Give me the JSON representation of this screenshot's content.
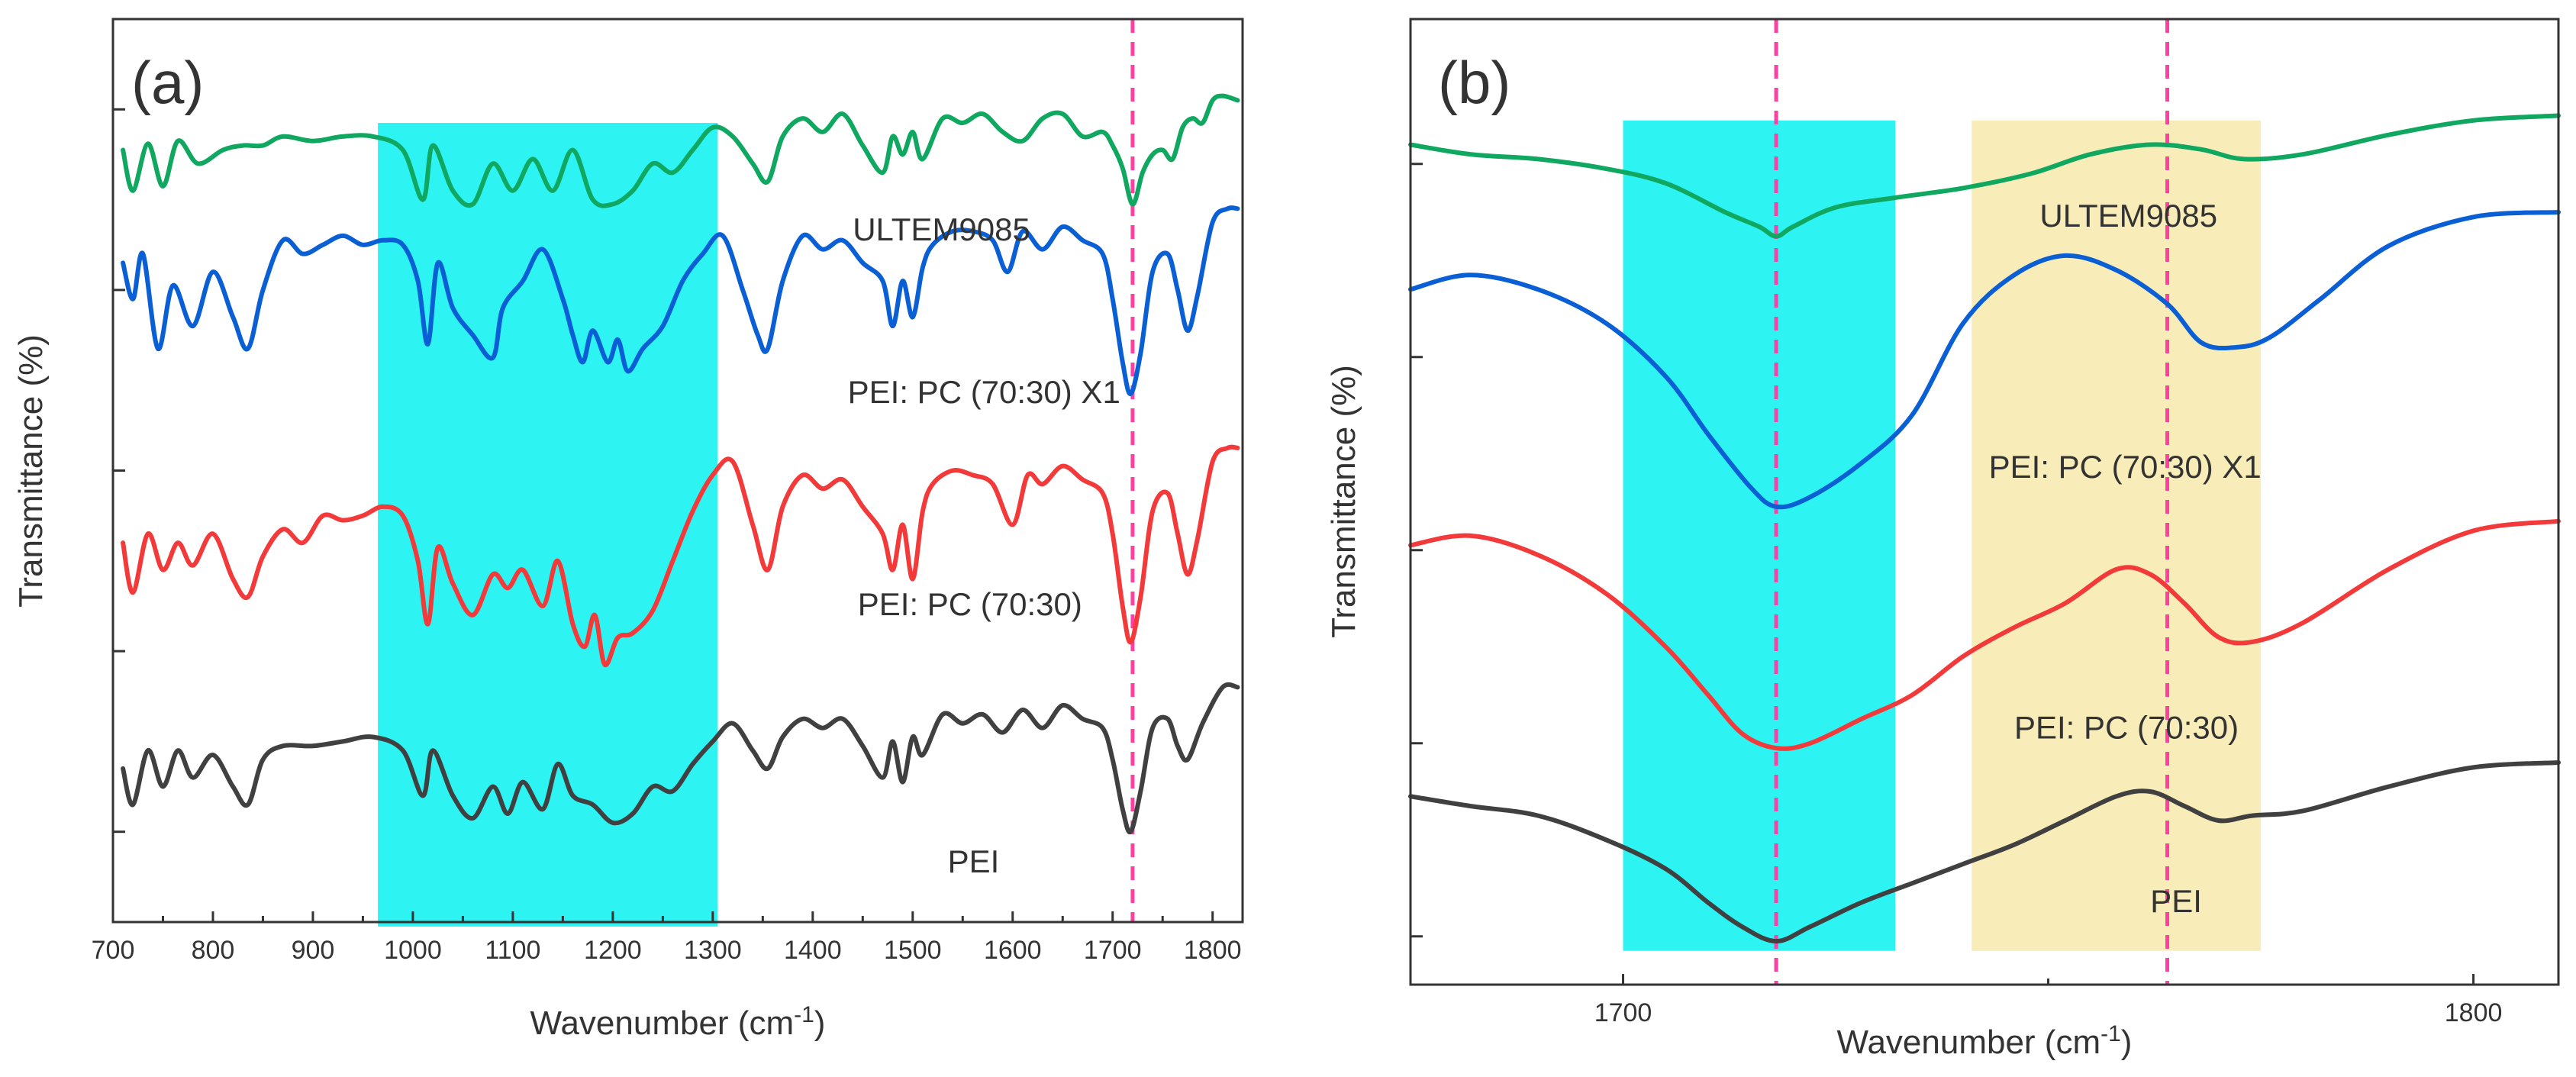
{
  "colors": {
    "ULTEM9085": "#10a860",
    "PEI_PC_X1": "#0a5fd4",
    "PEI_PC": "#f23a3a",
    "PEI": "#404040",
    "cyan_band": "#2ef3f3",
    "yellow_band": "#f8edb8",
    "ref_line": "#ff3fa4"
  },
  "chart_data": [
    {
      "type": "line",
      "panel_label": "(a)",
      "xlabel": "Wavenumber (cm",
      "xlabel_sup": "-1",
      "xlabel_close": ")",
      "ylabel": "Transmittance (%)",
      "xlim": [
        700,
        1830
      ],
      "ylim": [
        0,
        10
      ],
      "xticks": [
        700,
        800,
        900,
        1000,
        1100,
        1200,
        1300,
        1400,
        1500,
        1600,
        1700,
        1800
      ],
      "xtick_labels": [
        "700",
        "800",
        "900",
        "1000",
        "1100",
        "1200",
        "1300",
        "1400",
        "1500",
        "1600",
        "1700",
        "1800"
      ],
      "yticks": [
        1,
        3,
        5,
        7,
        9
      ],
      "ytick_labels": [],
      "highlight_bands": [
        {
          "x": [
            965,
            1305
          ],
          "color_key": "cyan_band"
        }
      ],
      "ref_lines": [
        1720
      ],
      "series": [
        {
          "name": "ULTEM9085",
          "label": "ULTEM9085",
          "label_at": [
            1440,
            7.55
          ],
          "color_key": "ULTEM9085",
          "x": [
            710,
            720,
            735,
            750,
            765,
            785,
            810,
            830,
            850,
            870,
            900,
            930,
            960,
            990,
            1010,
            1020,
            1040,
            1060,
            1080,
            1100,
            1120,
            1140,
            1160,
            1180,
            1200,
            1220,
            1240,
            1260,
            1280,
            1300,
            1320,
            1340,
            1355,
            1370,
            1390,
            1410,
            1430,
            1450,
            1470,
            1480,
            1490,
            1500,
            1510,
            1530,
            1550,
            1570,
            1590,
            1610,
            1630,
            1650,
            1670,
            1690,
            1700,
            1710,
            1720,
            1730,
            1740,
            1750,
            1760,
            1770,
            1780,
            1790,
            1800,
            1810,
            1825
          ],
          "y": [
            8.55,
            8.1,
            8.62,
            8.15,
            8.65,
            8.4,
            8.55,
            8.6,
            8.6,
            8.7,
            8.65,
            8.7,
            8.7,
            8.55,
            8.0,
            8.6,
            8.1,
            7.95,
            8.4,
            8.1,
            8.45,
            8.1,
            8.55,
            8.0,
            7.95,
            8.1,
            8.4,
            8.3,
            8.55,
            8.8,
            8.7,
            8.4,
            8.2,
            8.7,
            8.9,
            8.75,
            8.95,
            8.6,
            8.3,
            8.7,
            8.5,
            8.75,
            8.45,
            8.9,
            8.85,
            8.95,
            8.75,
            8.65,
            8.9,
            8.95,
            8.7,
            8.75,
            8.6,
            8.35,
            7.95,
            8.3,
            8.5,
            8.55,
            8.45,
            8.8,
            8.9,
            8.85,
            9.1,
            9.15,
            9.1
          ]
        },
        {
          "name": "PEI: PC (70:30) X1",
          "label": "PEI: PC (70:30) X1",
          "label_at": [
            1435,
            5.75
          ],
          "color_key": "PEI_PC_X1",
          "x": [
            710,
            720,
            730,
            745,
            760,
            780,
            800,
            820,
            835,
            850,
            870,
            890,
            910,
            930,
            950,
            970,
            990,
            1005,
            1015,
            1025,
            1040,
            1060,
            1080,
            1090,
            1110,
            1130,
            1150,
            1160,
            1170,
            1180,
            1195,
            1205,
            1215,
            1230,
            1250,
            1270,
            1290,
            1310,
            1330,
            1345,
            1355,
            1370,
            1390,
            1410,
            1430,
            1450,
            1470,
            1480,
            1490,
            1500,
            1510,
            1520,
            1540,
            1560,
            1580,
            1595,
            1610,
            1630,
            1650,
            1670,
            1690,
            1700,
            1710,
            1718,
            1728,
            1740,
            1755,
            1765,
            1775,
            1785,
            1800,
            1815,
            1825
          ],
          "y": [
            7.3,
            6.9,
            7.4,
            6.35,
            7.05,
            6.6,
            7.2,
            6.7,
            6.35,
            7.0,
            7.55,
            7.4,
            7.5,
            7.6,
            7.5,
            7.55,
            7.5,
            7.1,
            6.4,
            7.3,
            6.8,
            6.5,
            6.25,
            6.8,
            7.1,
            7.45,
            6.9,
            6.5,
            6.2,
            6.55,
            6.2,
            6.45,
            6.1,
            6.35,
            6.6,
            7.1,
            7.4,
            7.6,
            7.0,
            6.5,
            6.35,
            7.1,
            7.6,
            7.45,
            7.55,
            7.3,
            7.1,
            6.6,
            7.1,
            6.7,
            7.25,
            7.5,
            7.65,
            7.65,
            7.55,
            7.2,
            7.65,
            7.45,
            7.7,
            7.55,
            7.4,
            6.9,
            6.2,
            5.85,
            6.3,
            7.2,
            7.4,
            7.0,
            6.55,
            6.95,
            7.75,
            7.9,
            7.9
          ]
        },
        {
          "name": "PEI: PC (70:30)",
          "label": "PEI: PC (70:30)",
          "label_at": [
            1445,
            3.4
          ],
          "color_key": "PEI_PC",
          "x": [
            710,
            720,
            735,
            750,
            765,
            780,
            800,
            820,
            835,
            850,
            870,
            890,
            910,
            930,
            950,
            970,
            990,
            1005,
            1015,
            1025,
            1040,
            1060,
            1080,
            1095,
            1110,
            1130,
            1145,
            1160,
            1172,
            1182,
            1192,
            1205,
            1220,
            1240,
            1260,
            1280,
            1300,
            1320,
            1340,
            1355,
            1370,
            1390,
            1410,
            1430,
            1450,
            1470,
            1480,
            1490,
            1500,
            1510,
            1520,
            1540,
            1560,
            1580,
            1600,
            1615,
            1630,
            1650,
            1670,
            1690,
            1700,
            1710,
            1718,
            1728,
            1740,
            1755,
            1765,
            1775,
            1785,
            1800,
            1815,
            1825
          ],
          "y": [
            4.2,
            3.65,
            4.3,
            3.9,
            4.2,
            3.95,
            4.3,
            3.8,
            3.6,
            4.05,
            4.35,
            4.2,
            4.5,
            4.45,
            4.5,
            4.6,
            4.5,
            4.0,
            3.3,
            4.15,
            3.75,
            3.4,
            3.85,
            3.7,
            3.9,
            3.5,
            4.0,
            3.3,
            3.05,
            3.4,
            2.85,
            3.15,
            3.2,
            3.45,
            4.0,
            4.55,
            4.95,
            5.1,
            4.4,
            3.9,
            4.6,
            4.95,
            4.8,
            4.9,
            4.6,
            4.3,
            3.9,
            4.4,
            3.8,
            4.55,
            4.85,
            5.0,
            4.95,
            4.85,
            4.4,
            4.95,
            4.85,
            5.05,
            4.9,
            4.75,
            4.3,
            3.5,
            3.1,
            3.6,
            4.55,
            4.75,
            4.3,
            3.85,
            4.25,
            5.1,
            5.25,
            5.25
          ]
        },
        {
          "name": "PEI",
          "label": "PEI",
          "label_at": [
            1535,
            0.55
          ],
          "color_key": "PEI",
          "x": [
            710,
            720,
            735,
            750,
            765,
            780,
            800,
            820,
            835,
            850,
            870,
            900,
            930,
            960,
            990,
            1010,
            1020,
            1040,
            1060,
            1080,
            1095,
            1110,
            1130,
            1145,
            1160,
            1180,
            1200,
            1220,
            1240,
            1260,
            1280,
            1300,
            1320,
            1340,
            1355,
            1370,
            1390,
            1410,
            1430,
            1450,
            1470,
            1480,
            1490,
            1500,
            1510,
            1530,
            1550,
            1570,
            1590,
            1610,
            1630,
            1650,
            1670,
            1690,
            1700,
            1710,
            1718,
            1728,
            1740,
            1755,
            1765,
            1775,
            1790,
            1810,
            1825
          ],
          "y": [
            1.7,
            1.3,
            1.9,
            1.5,
            1.9,
            1.6,
            1.85,
            1.5,
            1.3,
            1.8,
            1.95,
            1.95,
            2.0,
            2.05,
            1.9,
            1.4,
            1.9,
            1.4,
            1.15,
            1.5,
            1.2,
            1.55,
            1.25,
            1.75,
            1.4,
            1.3,
            1.1,
            1.2,
            1.5,
            1.45,
            1.75,
            2.0,
            2.2,
            1.9,
            1.7,
            2.05,
            2.25,
            2.15,
            2.25,
            1.95,
            1.6,
            2.0,
            1.55,
            2.05,
            1.85,
            2.3,
            2.2,
            2.3,
            2.1,
            2.35,
            2.15,
            2.4,
            2.25,
            2.15,
            1.8,
            1.25,
            1.0,
            1.45,
            2.15,
            2.25,
            1.95,
            1.8,
            2.2,
            2.6,
            2.6
          ]
        }
      ]
    },
    {
      "type": "line",
      "panel_label": "(b)",
      "xlabel": "Wavenumber (cm",
      "xlabel_sup": "-1",
      "xlabel_close": ")",
      "ylabel": "Transmittance (%)",
      "xlim": [
        1675,
        1810
      ],
      "ylim": [
        0,
        10
      ],
      "xticks": [
        1700,
        1800
      ],
      "xtick_labels": [
        "1700",
        "1800"
      ],
      "yticks": [
        0.5,
        2.5,
        4.5,
        6.5,
        8.5
      ],
      "ytick_labels": [],
      "highlight_bands": [
        {
          "x": [
            1700,
            1732
          ],
          "color_key": "cyan_band"
        },
        {
          "x": [
            1741,
            1775
          ],
          "color_key": "yellow_band"
        }
      ],
      "ref_lines": [
        1718,
        1764
      ],
      "series": [
        {
          "name": "ULTEM9085",
          "label": "ULTEM9085",
          "label_at": [
            1749,
            7.85
          ],
          "color_key": "ULTEM9085",
          "x": [
            1675,
            1682,
            1690,
            1698,
            1705,
            1712,
            1716,
            1718,
            1720,
            1725,
            1732,
            1740,
            1748,
            1755,
            1762,
            1768,
            1773,
            1780,
            1790,
            1800,
            1810
          ],
          "y": [
            8.7,
            8.6,
            8.55,
            8.45,
            8.3,
            8.0,
            7.85,
            7.75,
            7.85,
            8.05,
            8.15,
            8.25,
            8.4,
            8.6,
            8.7,
            8.65,
            8.55,
            8.6,
            8.8,
            8.95,
            9.0
          ]
        },
        {
          "name": "PEI: PC (70:30) X1",
          "label": "PEI: PC (70:30) X1",
          "label_at": [
            1743,
            5.25
          ],
          "color_key": "PEI_PC_X1",
          "x": [
            1675,
            1682,
            1690,
            1698,
            1705,
            1710,
            1715,
            1718,
            1722,
            1728,
            1734,
            1740,
            1746,
            1752,
            1758,
            1764,
            1768,
            1772,
            1776,
            1782,
            1790,
            1800,
            1810
          ],
          "y": [
            7.2,
            7.35,
            7.2,
            6.85,
            6.3,
            5.7,
            5.15,
            4.95,
            5.05,
            5.4,
            5.9,
            6.85,
            7.35,
            7.55,
            7.4,
            7.05,
            6.65,
            6.6,
            6.7,
            7.1,
            7.65,
            7.95,
            8.0
          ]
        },
        {
          "name": "PEI: PC (70:30)",
          "label": "PEI: PC (70:30)",
          "label_at": [
            1746,
            2.55
          ],
          "color_key": "PEI_PC",
          "x": [
            1675,
            1682,
            1690,
            1698,
            1705,
            1710,
            1714,
            1718,
            1722,
            1728,
            1734,
            1740,
            1746,
            1752,
            1758,
            1762,
            1766,
            1770,
            1774,
            1780,
            1790,
            1800,
            1810
          ],
          "y": [
            4.55,
            4.65,
            4.45,
            4.05,
            3.5,
            3.0,
            2.6,
            2.45,
            2.5,
            2.75,
            3.0,
            3.4,
            3.7,
            3.95,
            4.3,
            4.25,
            3.95,
            3.6,
            3.55,
            3.75,
            4.3,
            4.7,
            4.8
          ]
        },
        {
          "name": "PEI",
          "label": "PEI",
          "label_at": [
            1762,
            0.75
          ],
          "color_key": "PEI",
          "x": [
            1675,
            1682,
            1690,
            1698,
            1705,
            1710,
            1714,
            1718,
            1722,
            1728,
            1734,
            1740,
            1746,
            1752,
            1758,
            1762,
            1766,
            1770,
            1774,
            1780,
            1790,
            1800,
            1810
          ],
          "y": [
            1.95,
            1.85,
            1.75,
            1.5,
            1.2,
            0.85,
            0.6,
            0.45,
            0.6,
            0.85,
            1.05,
            1.25,
            1.45,
            1.7,
            1.95,
            2.0,
            1.85,
            1.7,
            1.75,
            1.8,
            2.05,
            2.25,
            2.3
          ]
        }
      ]
    }
  ]
}
